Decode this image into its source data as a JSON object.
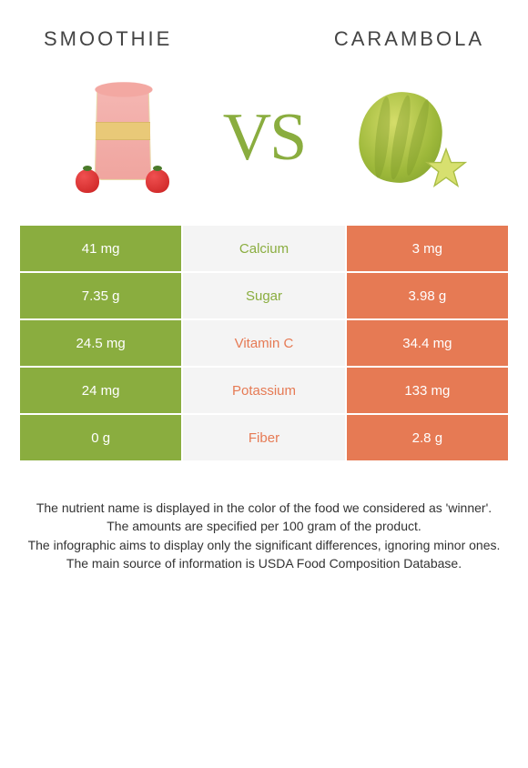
{
  "header": {
    "left_title": "Smoothie",
    "right_title": "Carambola"
  },
  "vs_label": "VS",
  "colors": {
    "left": "#8aad3f",
    "right": "#e67a54",
    "mid_bg": "#f4f4f4",
    "text": "#333333"
  },
  "table": {
    "rows": [
      {
        "left": "41 mg",
        "label": "Calcium",
        "right": "3 mg",
        "winner": "left"
      },
      {
        "left": "7.35 g",
        "label": "Sugar",
        "right": "3.98 g",
        "winner": "left"
      },
      {
        "left": "24.5 mg",
        "label": "Vitamin C",
        "right": "34.4 mg",
        "winner": "right"
      },
      {
        "left": "24 mg",
        "label": "Potassium",
        "right": "133 mg",
        "winner": "right"
      },
      {
        "left": "0 g",
        "label": "Fiber",
        "right": "2.8 g",
        "winner": "right"
      }
    ]
  },
  "footer": {
    "line1": "The nutrient name is displayed in the color of the food we considered as 'winner'.",
    "line2": "The amounts are specified per 100 gram of the product.",
    "line3": "The infographic aims to display only the significant differences, ignoring minor ones.",
    "line4": "The main source of information is USDA Food Composition Database."
  }
}
